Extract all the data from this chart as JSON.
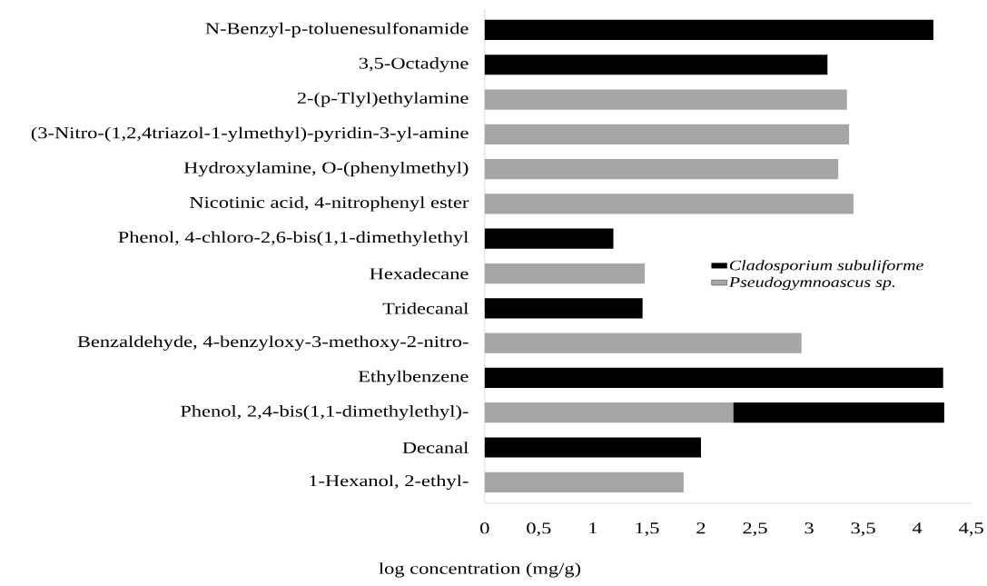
{
  "chart_data": {
    "type": "bar",
    "orientation": "horizontal",
    "stacked": true,
    "categories": [
      "N-Benzyl-p-toluenesulfonamide",
      "3,5-Octadyne",
      "2-(p-Tlyl)ethylamine",
      "(3-Nitro-(1,2,4triazol-1-ylmethyl)-pyridin-3-yl-amine",
      "Hydroxylamine, O-(phenylmethyl)",
      "Nicotinic acid, 4-nitrophenyl ester",
      "Phenol, 4-chloro-2,6-bis(1,1-dimethylethyl",
      "Hexadecane",
      "Tridecanal",
      "Benzaldehyde, 4-benzyloxy-3-methoxy-2-nitro-",
      "Ethylbenzene",
      "Phenol, 2,4-bis(1,1-dimethylethyl)-",
      "Decanal",
      "1-Hexanol, 2-ethyl-"
    ],
    "series": [
      {
        "name": "Pseudogymnoascus sp.",
        "color": "#a6a6a6",
        "values": [
          null,
          null,
          3.35,
          3.37,
          3.27,
          3.41,
          null,
          1.48,
          null,
          2.93,
          null,
          2.3,
          null,
          1.84
        ]
      },
      {
        "name": "Cladosporium subuliforme",
        "color": "#000000",
        "values": [
          4.15,
          3.17,
          null,
          null,
          null,
          null,
          1.19,
          null,
          1.46,
          null,
          4.24,
          1.95,
          2.0,
          null
        ]
      }
    ],
    "xlabel": "log concentration (mg/g)",
    "xlim": [
      0,
      4.5
    ],
    "xticks": [
      0,
      {
        "value": 0.5,
        "label": "0,5"
      },
      1,
      {
        "value": 1.5,
        "label": "1,5"
      },
      2,
      {
        "value": 2.5,
        "label": "2,5"
      },
      3,
      {
        "value": 3.5,
        "label": "3,5"
      },
      4,
      {
        "value": 4.5,
        "label": "4,5"
      }
    ],
    "legend": "right"
  }
}
